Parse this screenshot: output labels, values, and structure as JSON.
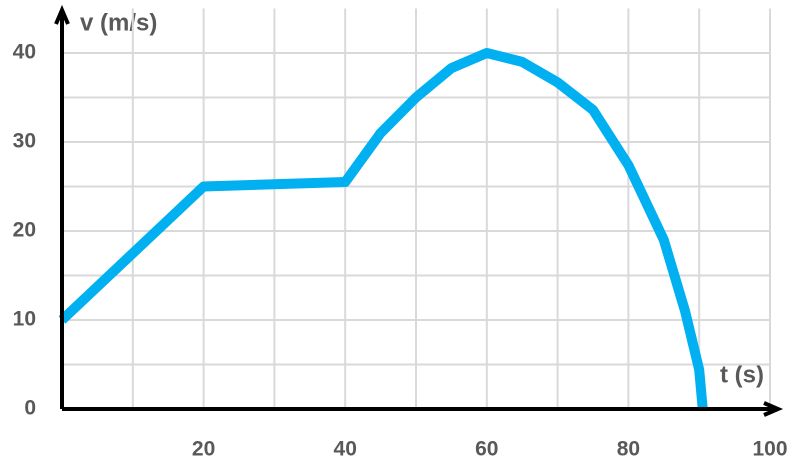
{
  "chart_data": {
    "type": "line",
    "x_label": "t (s)",
    "y_label": "v (m/s)",
    "x": [
      0,
      20,
      40,
      45,
      50,
      55,
      60,
      65,
      70,
      75,
      80,
      85,
      88,
      90,
      90.5
    ],
    "series": [
      {
        "color": "#00b0f0",
        "values": [
          10,
          25,
          25.5,
          31,
          35,
          38.3,
          40,
          39,
          36.7,
          33.6,
          27.4,
          19,
          11,
          4.4,
          0
        ]
      }
    ],
    "xlim": [
      0,
      100
    ],
    "ylim": [
      0,
      45
    ],
    "xticks": [
      20,
      40,
      60,
      80,
      100
    ],
    "yticks": [
      0,
      10,
      20,
      30,
      40
    ],
    "minor_xticks": [
      10,
      30,
      50,
      70,
      90
    ],
    "minor_yticks": [
      5,
      15,
      25,
      35
    ],
    "grid": true
  }
}
